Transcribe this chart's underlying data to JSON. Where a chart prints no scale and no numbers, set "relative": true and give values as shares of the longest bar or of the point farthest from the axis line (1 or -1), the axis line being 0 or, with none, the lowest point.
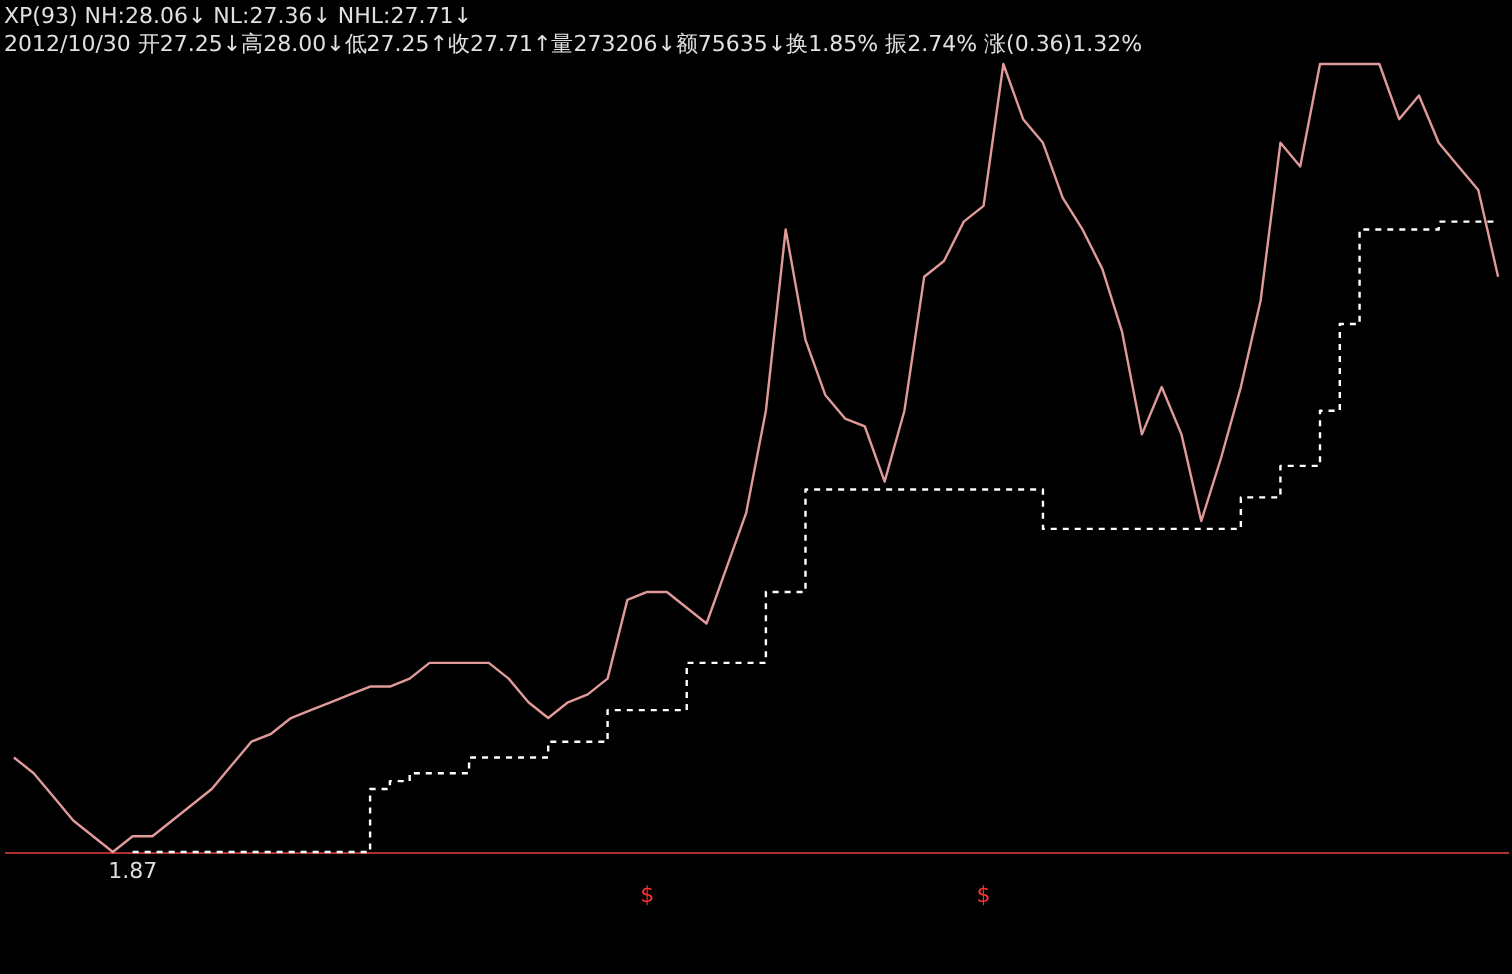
{
  "chart_data": {
    "type": "line",
    "title": "XP(93) NH:28.06↓ NL:27.36↓ NHL:27.71↓",
    "subtitle": "2012/10/30 开27.25↓高28.00↓低27.25↑收27.71↑量273206↓额75635↓换1.85% 振2.74% 涨(0.36)1.32%",
    "relative": true,
    "tick_labels": false,
    "categories": [
      null,
      null,
      null,
      null,
      null,
      null,
      null,
      null,
      null,
      null,
      null,
      null,
      null,
      null,
      null,
      null,
      null,
      null,
      null,
      null,
      null,
      null,
      null,
      null,
      null,
      null,
      null,
      null,
      null,
      null,
      null,
      null,
      null,
      null,
      null,
      null,
      null,
      null,
      null,
      null,
      null,
      null,
      null,
      null,
      null,
      null,
      null,
      null,
      null,
      null,
      null,
      null,
      null,
      null,
      null,
      null,
      null,
      null,
      null,
      null,
      null,
      null,
      null,
      null,
      null,
      null,
      null,
      null,
      null,
      null,
      null,
      null,
      null,
      null,
      null,
      null
    ],
    "series": [
      {
        "type": "line",
        "color": "#e09a9a",
        "line_style": "solid",
        "values": [
          0.12,
          0.1,
          0.07,
          0.04,
          0.02,
          0,
          0.02,
          0.02,
          0.04,
          0.06,
          0.08,
          0.11,
          0.14,
          0.15,
          0.17,
          0.18,
          0.19,
          0.2,
          0.21,
          0.21,
          0.22,
          0.24,
          0.24,
          0.24,
          0.24,
          0.22,
          0.19,
          0.17,
          0.19,
          0.2,
          0.22,
          0.32,
          0.33,
          0.33,
          0.31,
          0.29,
          0.36,
          0.43,
          0.56,
          0.79,
          0.65,
          0.58,
          0.55,
          0.54,
          0.47,
          0.56,
          0.73,
          0.75,
          0.8,
          0.82,
          1,
          0.93,
          0.9,
          0.83,
          0.79,
          0.74,
          0.66,
          0.53,
          0.59,
          0.53,
          0.42,
          0.5,
          0.59,
          0.7,
          0.9,
          0.87,
          1,
          1,
          1,
          1,
          0.93,
          0.96,
          0.9,
          0.87,
          0.84,
          0.73
        ]
      },
      {
        "type": "step",
        "color": "#ffffff",
        "line_style": "dashed",
        "values": [
          null,
          null,
          null,
          null,
          null,
          null,
          0,
          0,
          0,
          0,
          0,
          0,
          0,
          0,
          0,
          0,
          0,
          0,
          0.08,
          0.09,
          0.1,
          0.1,
          0.1,
          0.12,
          0.12,
          0.12,
          0.12,
          0.14,
          0.14,
          0.14,
          0.18,
          0.18,
          0.18,
          0.18,
          0.24,
          0.24,
          0.24,
          0.24,
          0.33,
          0.33,
          0.46,
          0.46,
          0.46,
          0.46,
          0.46,
          0.46,
          0.46,
          0.46,
          0.46,
          0.46,
          0.46,
          0.46,
          0.41,
          0.41,
          0.41,
          0.41,
          0.41,
          0.41,
          0.41,
          0.41,
          0.41,
          0.41,
          0.45,
          0.45,
          0.49,
          0.49,
          0.56,
          0.67,
          0.79,
          0.79,
          0.79,
          0.79,
          0.8,
          0.8,
          0.8,
          0.8
        ]
      }
    ],
    "annotations": [
      "1.87",
      "$",
      "$"
    ]
  }
}
